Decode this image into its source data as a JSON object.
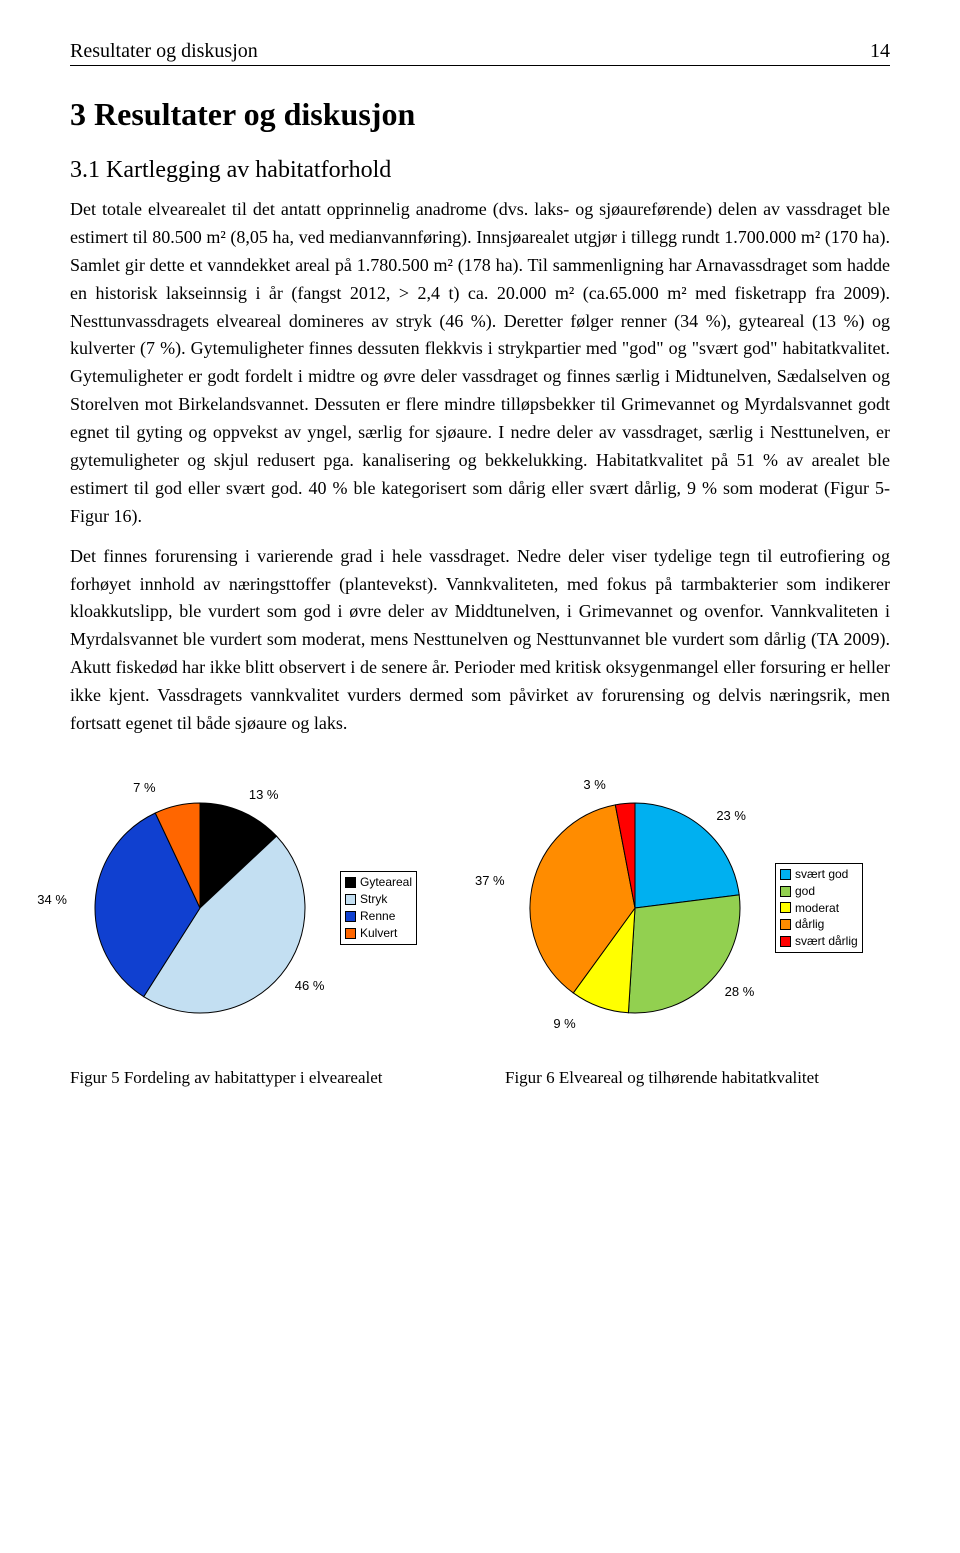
{
  "header": {
    "running_title": "Resultater og diskusjon",
    "page_number": "14"
  },
  "section": {
    "h1": "3  Resultater og diskusjon",
    "h2": "3.1  Kartlegging av habitatforhold",
    "paragraph1": "Det totale elvearealet til det antatt opprinnelig anadrome (dvs. laks- og sjøaureførende) delen av vassdraget ble estimert til 80.500 m² (8,05 ha, ved medianvannføring). Innsjøarealet utgjør i tillegg rundt 1.700.000 m² (170 ha). Samlet gir dette et vanndekket areal på 1.780.500 m² (178 ha). Til sammenligning har Arnavassdraget som hadde en historisk lakseinnsig i år (fangst 2012, > 2,4 t)  ca. 20.000 m² (ca.65.000 m² med fisketrapp fra 2009). Nesttunvassdragets elveareal domineres av stryk (46 %). Deretter følger renner (34 %), gyteareal (13 %) og kulverter (7 %). Gytemuligheter finnes dessuten flekkvis i strykpartier med \"god\" og \"svært god\" habitatkvalitet. Gytemuligheter er godt fordelt i midtre og øvre deler vassdraget og finnes særlig i Midtunelven, Sædalselven og Storelven mot Birkelandsvannet. Dessuten er flere mindre tilløpsbekker til Grimevannet og Myrdalsvannet godt egnet til gyting og oppvekst av yngel, særlig for sjøaure. I nedre deler av vassdraget, særlig i Nesttunelven, er gytemuligheter og skjul redusert pga. kanalisering og bekkelukking. Habitatkvalitet på 51 % av arealet ble estimert til god eller svært god. 40 % ble kategorisert som dårig eller svært dårlig, 9 % som moderat (Figur 5-Figur 16).",
    "paragraph2": "Det finnes forurensing i varierende grad i hele vassdraget. Nedre deler viser tydelige tegn til eutrofiering og forhøyet innhold av næringsttoffer (plantevekst). Vannkvaliteten, med fokus på tarmbakterier som indikerer kloakkutslipp, ble vurdert som god i øvre deler av Middtunelven, i Grimevannet og ovenfor. Vannkvaliteten i Myrdalsvannet ble vurdert som moderat, mens Nesttunelven og Nesttunvannet ble vurdert som dårlig (TA 2009). Akutt fiskedød har ikke blitt observert i de senere år. Perioder med kritisk oksygenmangel eller forsuring er heller ikke kjent. Vassdragets vannkvalitet vurders dermed som påvirket av forurensing og delvis næringsrik, men fortsatt egenet til både sjøaure og laks."
  },
  "chart_left": {
    "type": "pie",
    "slices": [
      {
        "label": "Gyteareal",
        "value": 13,
        "pct_text": "13 %",
        "color": "#000000"
      },
      {
        "label": "Stryk",
        "value": 46,
        "pct_text": "46 %",
        "color": "#c3dff2"
      },
      {
        "label": "Renne",
        "value": 34,
        "pct_text": "34 %",
        "color": "#1040d0"
      },
      {
        "label": "Kulvert",
        "value": 7,
        "pct_text": "7 %",
        "color": "#ff6600"
      }
    ],
    "radius": 105,
    "border_color": "#000000",
    "background_color": "#ffffff",
    "label_font": "Arial",
    "label_fontsize": 13
  },
  "chart_right": {
    "type": "pie",
    "slices": [
      {
        "label": "svært god",
        "value": 23,
        "pct_text": "23 %",
        "color": "#00b0f0"
      },
      {
        "label": "god",
        "value": 28,
        "pct_text": "28 %",
        "color": "#92d050"
      },
      {
        "label": "moderat",
        "value": 9,
        "pct_text": "9 %",
        "color": "#ffff00"
      },
      {
        "label": "dårlig",
        "value": 37,
        "pct_text": "37 %",
        "color": "#ff8c00"
      },
      {
        "label": "svært dårlig",
        "value": 3,
        "pct_text": "3 %",
        "color": "#ff0000"
      }
    ],
    "radius": 105,
    "border_color": "#000000",
    "background_color": "#ffffff",
    "label_font": "Arial",
    "label_fontsize": 13
  },
  "captions": {
    "left": "Figur 5   Fordeling   av   habitattyper   i elvearealet",
    "right": "Figur 6    Elveareal       og       tilhørende habitatkvalitet"
  }
}
